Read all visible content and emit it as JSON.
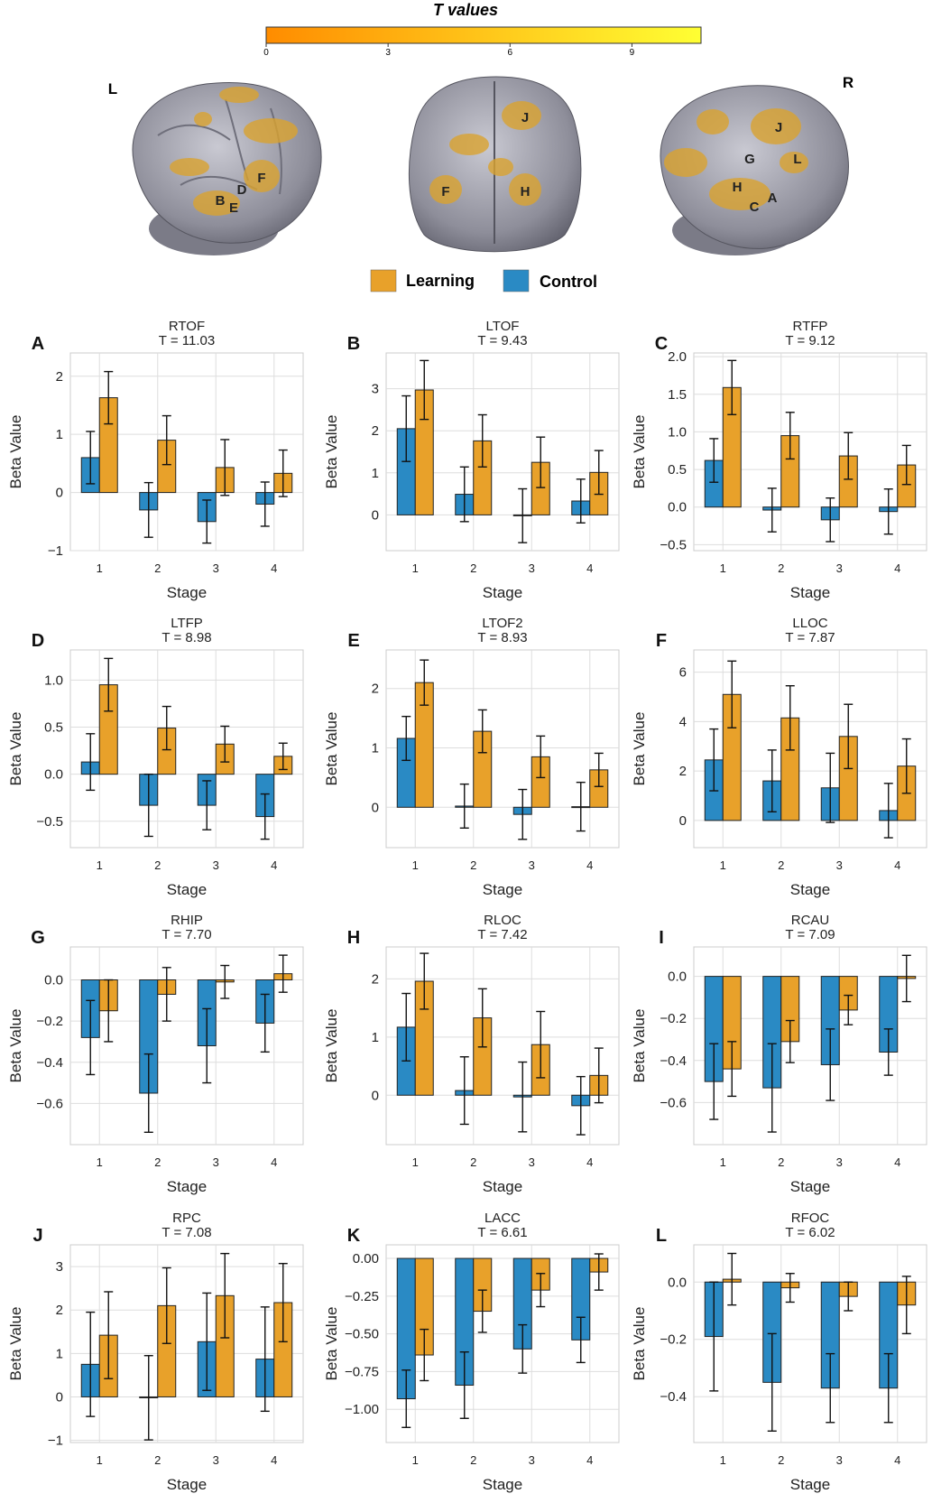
{
  "colorbar": {
    "title": "T values",
    "ticks": [
      "0",
      "3",
      "6",
      "9"
    ],
    "range": [
      0,
      10.7
    ],
    "color_start": "#ff8c00",
    "color_end": "#ffff33"
  },
  "brain_views": {
    "side_labels": [
      "L",
      "R"
    ],
    "left_regions": [
      "F",
      "D",
      "B",
      "E"
    ],
    "middle_regions": [
      "J",
      "F",
      "H"
    ],
    "right_regions": [
      "J",
      "G",
      "L",
      "H",
      "A",
      "C"
    ]
  },
  "legend": [
    {
      "label": "Learning",
      "color": "#e8a12a"
    },
    {
      "label": "Control",
      "color": "#2a8ac4"
    }
  ],
  "colors": {
    "learning": "#e8a12a",
    "control": "#2a8ac4",
    "brain": "#9a9aa6",
    "activation": "#d9a230",
    "grid": "#dddddd"
  },
  "chart_data": [
    {
      "type": "bar",
      "letter": "A",
      "title": "RTOF",
      "stat": "T = 11.03",
      "xlabel": "Stage",
      "ylabel": "Beta Value",
      "categories": [
        "1",
        "2",
        "3",
        "4"
      ],
      "ylim": [
        -1.0,
        2.4
      ],
      "yticks": [
        -1,
        0,
        1,
        2
      ],
      "ytick_labels": [
        "−1",
        "0",
        "1",
        "2"
      ],
      "series": [
        {
          "name": "Control",
          "values": [
            0.6,
            -0.3,
            -0.5,
            -0.2
          ],
          "err": [
            0.45,
            0.47,
            0.37,
            0.38
          ]
        },
        {
          "name": "Learning",
          "values": [
            1.63,
            0.9,
            0.43,
            0.33
          ],
          "err": [
            0.45,
            0.42,
            0.48,
            0.4
          ]
        }
      ]
    },
    {
      "type": "bar",
      "letter": "B",
      "title": "LTOF",
      "stat": "T = 9.43",
      "xlabel": "Stage",
      "ylabel": "Beta Value",
      "categories": [
        "1",
        "2",
        "3",
        "4"
      ],
      "ylim": [
        -0.85,
        3.85
      ],
      "yticks": [
        0,
        1,
        2,
        3
      ],
      "ytick_labels": [
        "0",
        "1",
        "2",
        "3"
      ],
      "series": [
        {
          "name": "Control",
          "values": [
            2.05,
            0.49,
            -0.02,
            0.33
          ],
          "err": [
            0.78,
            0.65,
            0.64,
            0.52
          ]
        },
        {
          "name": "Learning",
          "values": [
            2.97,
            1.76,
            1.25,
            1.01
          ],
          "err": [
            0.7,
            0.62,
            0.6,
            0.52
          ]
        }
      ]
    },
    {
      "type": "bar",
      "letter": "C",
      "title": "RTFP",
      "stat": "T = 9.12",
      "xlabel": "Stage",
      "ylabel": "Beta Value",
      "categories": [
        "1",
        "2",
        "3",
        "4"
      ],
      "ylim": [
        -0.58,
        2.05
      ],
      "yticks": [
        -0.5,
        0,
        0.5,
        1,
        1.5,
        2
      ],
      "ytick_labels": [
        "−0.5",
        "0.0",
        "0.5",
        "1.0",
        "1.5",
        "2.0"
      ],
      "series": [
        {
          "name": "Control",
          "values": [
            0.62,
            -0.04,
            -0.17,
            -0.06
          ],
          "err": [
            0.29,
            0.29,
            0.29,
            0.3
          ]
        },
        {
          "name": "Learning",
          "values": [
            1.59,
            0.95,
            0.68,
            0.56
          ],
          "err": [
            0.36,
            0.31,
            0.31,
            0.26
          ]
        }
      ]
    },
    {
      "type": "bar",
      "letter": "D",
      "title": "LTFP",
      "stat": "T = 8.98",
      "xlabel": "Stage",
      "ylabel": "Beta Value",
      "categories": [
        "1",
        "2",
        "3",
        "4"
      ],
      "ylim": [
        -0.78,
        1.32
      ],
      "yticks": [
        -0.5,
        0,
        0.5,
        1
      ],
      "ytick_labels": [
        "−0.5",
        "0.0",
        "0.5",
        "1.0"
      ],
      "series": [
        {
          "name": "Control",
          "values": [
            0.13,
            -0.33,
            -0.33,
            -0.45
          ],
          "err": [
            0.3,
            0.33,
            0.26,
            0.24
          ]
        },
        {
          "name": "Learning",
          "values": [
            0.95,
            0.49,
            0.32,
            0.19
          ],
          "err": [
            0.28,
            0.23,
            0.19,
            0.14
          ]
        }
      ]
    },
    {
      "type": "bar",
      "letter": "E",
      "title": "LTOF2",
      "stat": "T = 8.93",
      "xlabel": "Stage",
      "ylabel": "Beta Value",
      "categories": [
        "1",
        "2",
        "3",
        "4"
      ],
      "ylim": [
        -0.68,
        2.65
      ],
      "yticks": [
        0,
        1,
        2
      ],
      "ytick_labels": [
        "0",
        "1",
        "2"
      ],
      "series": [
        {
          "name": "Control",
          "values": [
            1.16,
            0.02,
            -0.12,
            0.01
          ],
          "err": [
            0.37,
            0.37,
            0.42,
            0.41
          ]
        },
        {
          "name": "Learning",
          "values": [
            2.1,
            1.28,
            0.85,
            0.63
          ],
          "err": [
            0.38,
            0.36,
            0.35,
            0.28
          ]
        }
      ]
    },
    {
      "type": "bar",
      "letter": "F",
      "title": "LLOC",
      "stat": "T = 7.87",
      "xlabel": "Stage",
      "ylabel": "Beta Value",
      "categories": [
        "1",
        "2",
        "3",
        "4"
      ],
      "ylim": [
        -1.1,
        6.9
      ],
      "yticks": [
        0,
        2,
        4,
        6
      ],
      "ytick_labels": [
        "0",
        "2",
        "4",
        "6"
      ],
      "series": [
        {
          "name": "Control",
          "values": [
            2.45,
            1.6,
            1.32,
            0.4
          ],
          "err": [
            1.25,
            1.25,
            1.4,
            1.1
          ]
        },
        {
          "name": "Learning",
          "values": [
            5.1,
            4.15,
            3.4,
            2.2
          ],
          "err": [
            1.35,
            1.3,
            1.3,
            1.1
          ]
        }
      ]
    },
    {
      "type": "bar",
      "letter": "G",
      "title": "RHIP",
      "stat": "T = 7.70",
      "xlabel": "Stage",
      "ylabel": "Beta Value",
      "categories": [
        "1",
        "2",
        "3",
        "4"
      ],
      "ylim": [
        -0.8,
        0.16
      ],
      "yticks": [
        -0.6,
        -0.4,
        -0.2,
        0
      ],
      "ytick_labels": [
        "−0.6",
        "−0.4",
        "−0.2",
        "0.0"
      ],
      "series": [
        {
          "name": "Control",
          "values": [
            -0.28,
            -0.55,
            -0.32,
            -0.21
          ],
          "err": [
            0.18,
            0.19,
            0.18,
            0.14
          ]
        },
        {
          "name": "Learning",
          "values": [
            -0.15,
            -0.07,
            -0.01,
            0.03
          ],
          "err": [
            0.15,
            0.13,
            0.08,
            0.09
          ]
        }
      ]
    },
    {
      "type": "bar",
      "letter": "H",
      "title": "RLOC",
      "stat": "T = 7.42",
      "xlabel": "Stage",
      "ylabel": "Beta Value",
      "categories": [
        "1",
        "2",
        "3",
        "4"
      ],
      "ylim": [
        -0.85,
        2.55
      ],
      "yticks": [
        0,
        1,
        2
      ],
      "ytick_labels": [
        "0",
        "1",
        "2"
      ],
      "series": [
        {
          "name": "Control",
          "values": [
            1.17,
            0.08,
            -0.03,
            -0.18
          ],
          "err": [
            0.58,
            0.58,
            0.6,
            0.5
          ]
        },
        {
          "name": "Learning",
          "values": [
            1.96,
            1.33,
            0.87,
            0.34
          ],
          "err": [
            0.48,
            0.5,
            0.57,
            0.47
          ]
        }
      ]
    },
    {
      "type": "bar",
      "letter": "I",
      "title": "RCAU",
      "stat": "T = 7.09",
      "xlabel": "Stage",
      "ylabel": "Beta Value",
      "categories": [
        "1",
        "2",
        "3",
        "4"
      ],
      "ylim": [
        -0.8,
        0.14
      ],
      "yticks": [
        -0.6,
        -0.4,
        -0.2,
        0
      ],
      "ytick_labels": [
        "−0.6",
        "−0.4",
        "−0.2",
        "0.0"
      ],
      "series": [
        {
          "name": "Control",
          "values": [
            -0.5,
            -0.53,
            -0.42,
            -0.36
          ],
          "err": [
            0.18,
            0.21,
            0.17,
            0.11
          ]
        },
        {
          "name": "Learning",
          "values": [
            -0.44,
            -0.31,
            -0.16,
            -0.01
          ],
          "err": [
            0.13,
            0.1,
            0.07,
            0.11
          ]
        }
      ]
    },
    {
      "type": "bar",
      "letter": "J",
      "title": "RPC",
      "stat": "T = 7.08",
      "xlabel": "Stage",
      "ylabel": "Beta Value",
      "categories": [
        "1",
        "2",
        "3",
        "4"
      ],
      "ylim": [
        -1.05,
        3.5
      ],
      "yticks": [
        -1,
        0,
        1,
        2,
        3
      ],
      "ytick_labels": [
        "−1",
        "0",
        "1",
        "2",
        "3"
      ],
      "series": [
        {
          "name": "Control",
          "values": [
            0.75,
            -0.02,
            1.27,
            0.87
          ],
          "err": [
            1.2,
            0.97,
            1.12,
            1.2
          ]
        },
        {
          "name": "Learning",
          "values": [
            1.42,
            2.1,
            2.33,
            2.17
          ],
          "err": [
            1.0,
            0.87,
            0.97,
            0.9
          ]
        }
      ]
    },
    {
      "type": "bar",
      "letter": "K",
      "title": "LACC",
      "stat": "T = 6.61",
      "xlabel": "Stage",
      "ylabel": "Beta Value",
      "categories": [
        "1",
        "2",
        "3",
        "4"
      ],
      "ylim": [
        -1.22,
        0.09
      ],
      "yticks": [
        -1,
        -0.75,
        -0.5,
        -0.25,
        0
      ],
      "ytick_labels": [
        "−1.00",
        "−0.75",
        "−0.50",
        "−0.25",
        "0.00"
      ],
      "series": [
        {
          "name": "Control",
          "values": [
            -0.93,
            -0.84,
            -0.6,
            -0.54
          ],
          "err": [
            0.19,
            0.22,
            0.16,
            0.15
          ]
        },
        {
          "name": "Learning",
          "values": [
            -0.64,
            -0.35,
            -0.21,
            -0.09
          ],
          "err": [
            0.17,
            0.14,
            0.11,
            0.12
          ]
        }
      ]
    },
    {
      "type": "bar",
      "letter": "L",
      "title": "RFOC",
      "stat": "T = 6.02",
      "xlabel": "Stage",
      "ylabel": "Beta Value",
      "categories": [
        "1",
        "2",
        "3",
        "4"
      ],
      "ylim": [
        -0.56,
        0.13
      ],
      "yticks": [
        -0.4,
        -0.2,
        0
      ],
      "ytick_labels": [
        "−0.4",
        "−0.2",
        "0.0"
      ],
      "series": [
        {
          "name": "Control",
          "values": [
            -0.19,
            -0.35,
            -0.37,
            -0.37
          ],
          "err": [
            0.19,
            0.17,
            0.12,
            0.12
          ]
        },
        {
          "name": "Learning",
          "values": [
            0.01,
            -0.02,
            -0.05,
            -0.08
          ],
          "err": [
            0.09,
            0.05,
            0.05,
            0.1
          ]
        }
      ]
    }
  ]
}
